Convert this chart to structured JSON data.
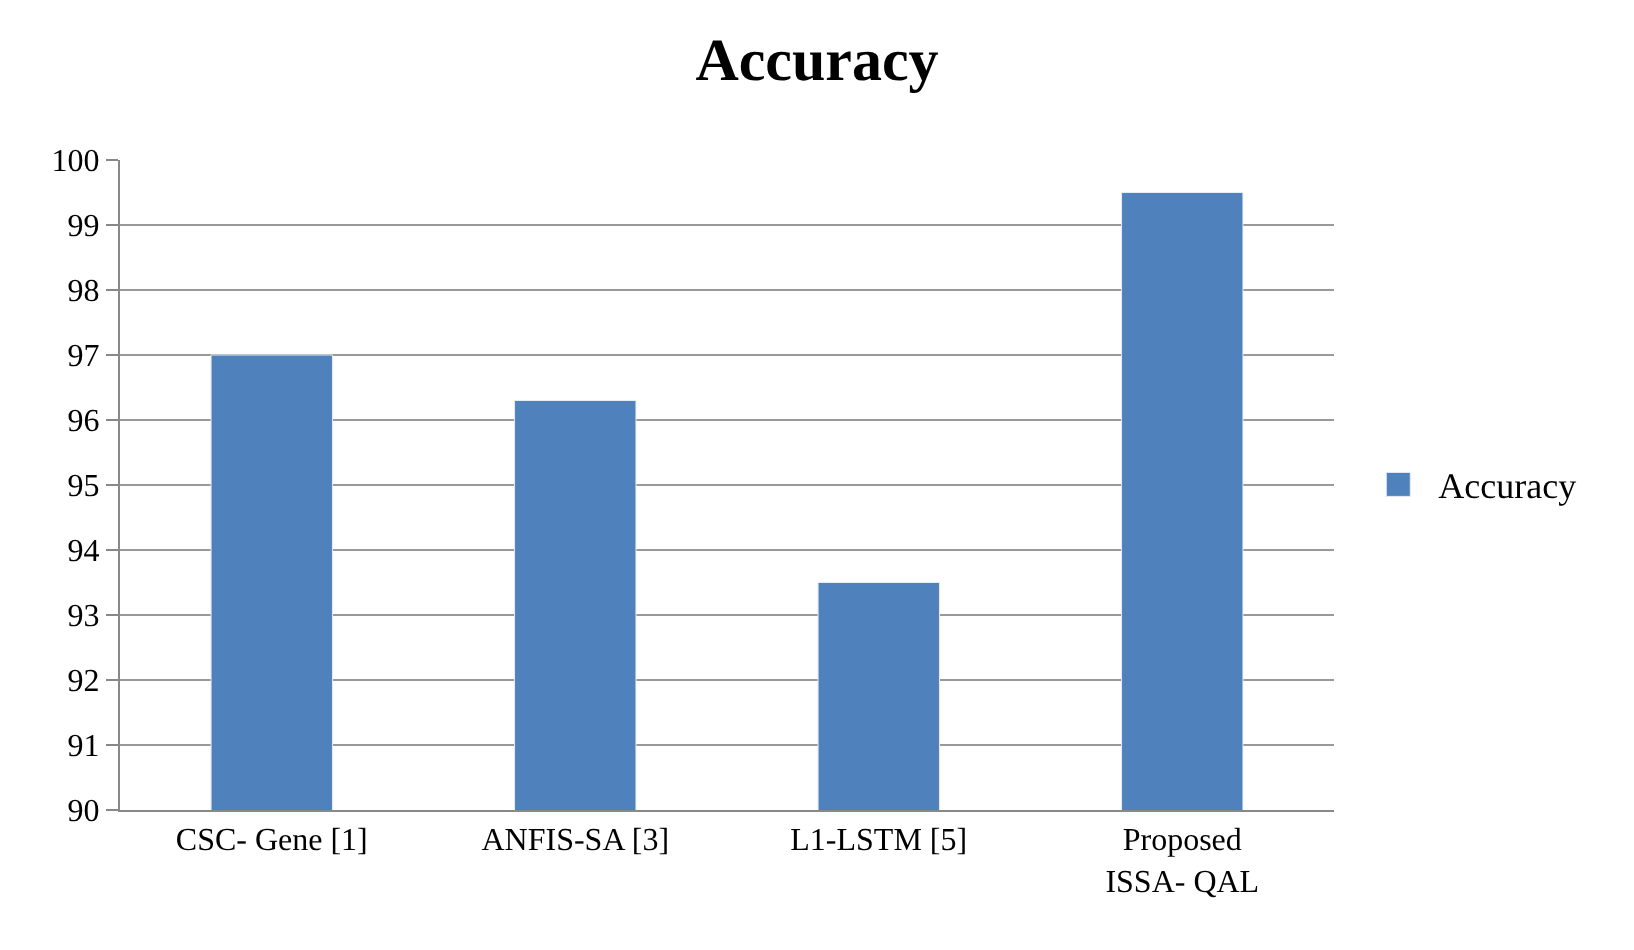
{
  "chart_data": {
    "type": "bar",
    "title": "Accuracy",
    "categories": [
      "CSC- Gene [1]",
      "ANFIS-SA [3]",
      "L1-LSTM [5]",
      "Proposed\nISSA- QAL"
    ],
    "series": [
      {
        "name": "Accuracy",
        "color": "#4f81bd",
        "values": [
          97.0,
          96.3,
          93.5,
          99.5
        ]
      }
    ],
    "ylim": [
      90,
      100
    ],
    "yticks": [
      90,
      91,
      92,
      93,
      94,
      95,
      96,
      97,
      98,
      99,
      100
    ],
    "grid": "y",
    "legend": "right"
  }
}
